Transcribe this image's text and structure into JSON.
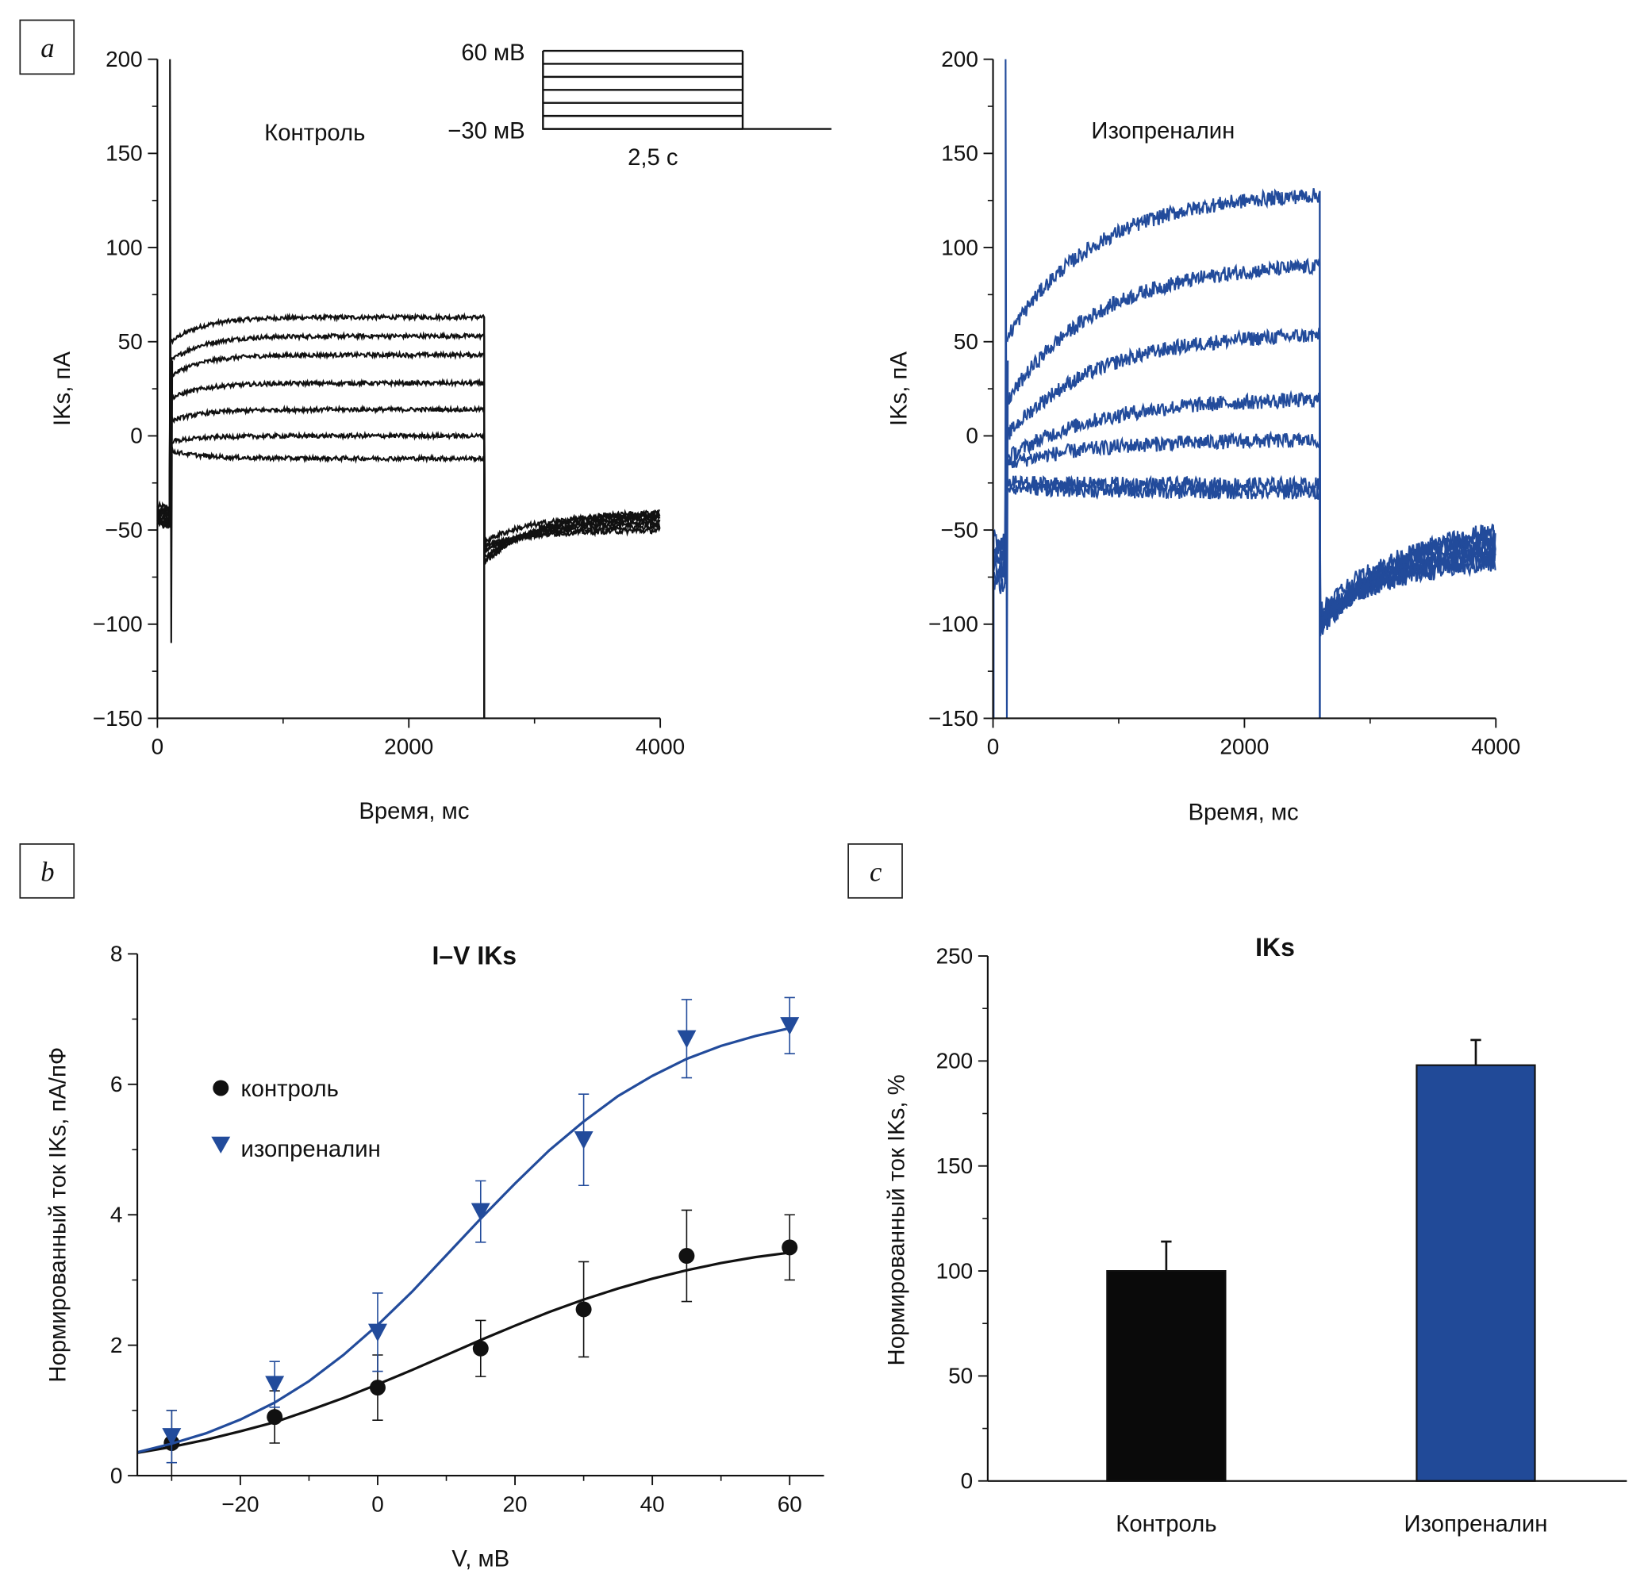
{
  "panels": {
    "a": "a",
    "b": "b",
    "c": "c"
  },
  "colors": {
    "control": "#111111",
    "isoprenaline": "#224b9b"
  },
  "panel_a": {
    "control_label": "Контроль",
    "iso_label": "Изопреналин",
    "protocol": {
      "top_label": "60 мВ",
      "bottom_label": "−30 мВ",
      "duration_label": "2,5 с",
      "levels_mV": [
        60,
        45,
        30,
        15,
        0,
        -15,
        -30
      ]
    }
  },
  "chart_data": [
    {
      "type": "line",
      "name": "Контроль",
      "xlabel": "Время, мс",
      "ylabel": "IKs, пА",
      "xlim": [
        0,
        4000
      ],
      "ylim": [
        -150,
        200
      ],
      "xticks": [
        "0",
        "2000",
        "4000"
      ],
      "yticks": [
        "200",
        "150",
        "100",
        "50",
        "0",
        "−50",
        "−100",
        "−150"
      ],
      "pulse_ms": [
        100,
        2600
      ],
      "traces_initial_pA": [
        50,
        40,
        32,
        20,
        8,
        -3,
        -8
      ],
      "traces_steady_pA": [
        63,
        53,
        43,
        28,
        14,
        0,
        -12
      ],
      "tail_start_pA": -68,
      "tail_end_pA": [
        -40,
        -42,
        -44,
        -46,
        -48,
        -50,
        -42
      ],
      "color": "#111111"
    },
    {
      "type": "line",
      "name": "Изопреналин",
      "xlabel": "Время, мс",
      "ylabel": "IKs, пА",
      "xlim": [
        0,
        4000
      ],
      "ylim": [
        -150,
        200
      ],
      "xticks": [
        "0",
        "2000",
        "4000"
      ],
      "yticks": [
        "200",
        "150",
        "100",
        "50",
        "0",
        "−50",
        "−100",
        "−150"
      ],
      "pulse_ms": [
        100,
        2600
      ],
      "traces_initial_pA": [
        52,
        18,
        0,
        -12,
        -15,
        -25,
        -27
      ],
      "traces_steady_pA": [
        130,
        92,
        55,
        20,
        -2,
        -26,
        -30
      ],
      "tail_start_pA": -105,
      "tail_end_pA": [
        -45,
        -50,
        -55,
        -58,
        -62,
        -65,
        -50
      ],
      "color": "#224b9b"
    },
    {
      "type": "scatter",
      "title": "I–V IKs",
      "xlabel": "V, мВ",
      "ylabel": "Нормированный ток IKs, пА/пФ",
      "xlim": [
        -35,
        65
      ],
      "ylim": [
        0,
        8
      ],
      "xticks": [
        "−20",
        "0",
        "20",
        "40",
        "60"
      ],
      "yticks": [
        "0",
        "2",
        "4",
        "6",
        "8"
      ],
      "legend_position": "upper-left",
      "series": [
        {
          "name": "контроль",
          "marker": "circle",
          "color": "#111111",
          "x": [
            -30,
            -15,
            0,
            15,
            30,
            45,
            60
          ],
          "y": [
            0.5,
            0.9,
            1.35,
            1.95,
            2.55,
            3.37,
            3.5
          ],
          "err": [
            0.5,
            0.4,
            0.5,
            0.43,
            0.73,
            0.7,
            0.5
          ],
          "fit": [
            [
              -35,
              0.35
            ],
            [
              -30,
              0.44
            ],
            [
              -25,
              0.55
            ],
            [
              -20,
              0.68
            ],
            [
              -15,
              0.82
            ],
            [
              -10,
              1.0
            ],
            [
              -5,
              1.19
            ],
            [
              0,
              1.4
            ],
            [
              5,
              1.62
            ],
            [
              10,
              1.85
            ],
            [
              15,
              2.08
            ],
            [
              20,
              2.3
            ],
            [
              25,
              2.51
            ],
            [
              30,
              2.7
            ],
            [
              35,
              2.87
            ],
            [
              40,
              3.02
            ],
            [
              45,
              3.15
            ],
            [
              50,
              3.26
            ],
            [
              55,
              3.35
            ],
            [
              60,
              3.42
            ]
          ]
        },
        {
          "name": "изопреналин",
          "marker": "triangle-down",
          "color": "#224b9b",
          "x": [
            -30,
            -15,
            0,
            15,
            30,
            45,
            60
          ],
          "y": [
            0.6,
            1.4,
            2.2,
            4.05,
            5.15,
            6.7,
            6.9
          ],
          "err": [
            0.4,
            0.35,
            0.6,
            0.47,
            0.7,
            0.6,
            0.43
          ],
          "fit": [
            [
              -35,
              0.36
            ],
            [
              -30,
              0.49
            ],
            [
              -25,
              0.65
            ],
            [
              -20,
              0.86
            ],
            [
              -15,
              1.12
            ],
            [
              -10,
              1.45
            ],
            [
              -5,
              1.85
            ],
            [
              0,
              2.31
            ],
            [
              5,
              2.82
            ],
            [
              10,
              3.38
            ],
            [
              15,
              3.94
            ],
            [
              20,
              4.48
            ],
            [
              25,
              4.99
            ],
            [
              30,
              5.43
            ],
            [
              35,
              5.82
            ],
            [
              40,
              6.13
            ],
            [
              45,
              6.39
            ],
            [
              50,
              6.59
            ],
            [
              55,
              6.74
            ],
            [
              60,
              6.86
            ]
          ]
        }
      ]
    },
    {
      "type": "bar",
      "title": "IKs",
      "ylabel": "Нормированный ток IKs, %",
      "categories": [
        "Контроль",
        "Изопреналин"
      ],
      "values": [
        100,
        198
      ],
      "errors": [
        14,
        12
      ],
      "colors": [
        "#0a0a0a",
        "#214a98"
      ],
      "ylim": [
        0,
        250
      ],
      "yticks": [
        "0",
        "50",
        "100",
        "150",
        "200",
        "250"
      ]
    }
  ]
}
